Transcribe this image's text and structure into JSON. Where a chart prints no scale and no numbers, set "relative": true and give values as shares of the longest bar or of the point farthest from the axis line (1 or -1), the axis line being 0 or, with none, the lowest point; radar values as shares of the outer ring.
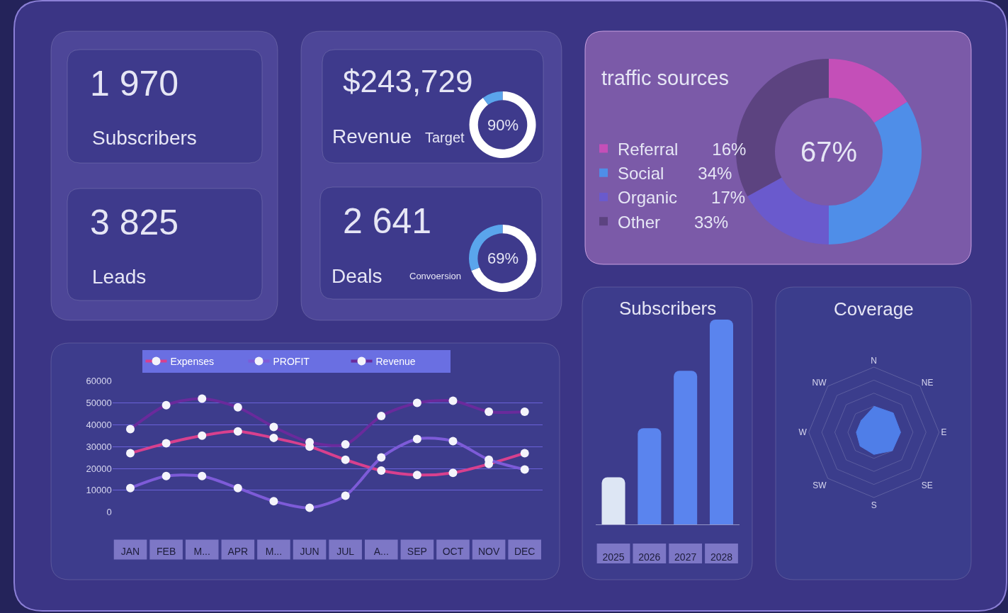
{
  "chart_data": [
    {
      "type": "other",
      "annotations": [
        "1 970",
        "Subscribers"
      ]
    },
    {
      "type": "other",
      "annotations": [
        "3 825",
        "Leads"
      ]
    },
    {
      "type": "other",
      "annotations": [
        "$243,729",
        "Revenue"
      ]
    },
    {
      "type": "donut",
      "title": "Target",
      "categories": [
        null,
        null
      ],
      "values": [
        90,
        10
      ],
      "colors": [
        "#ffffff",
        "#5aa5ec"
      ],
      "annotations": [
        "90%"
      ]
    },
    {
      "type": "other",
      "annotations": [
        "2 641",
        "Deals"
      ]
    },
    {
      "type": "donut",
      "title": "Convoersion",
      "categories": [
        null,
        null
      ],
      "values": [
        69,
        31
      ],
      "colors": [
        "#ffffff",
        "#5aa5ec"
      ],
      "annotations": [
        "69%"
      ]
    },
    {
      "type": "donut",
      "title": "traffic sources",
      "categories": [
        "Referral",
        "Social",
        "Organic",
        "Other"
      ],
      "values": [
        16,
        34,
        17,
        33
      ],
      "value_labels": [
        "16%",
        "34%",
        "17%",
        "33%"
      ],
      "colors": [
        "#c44fb8",
        "#4f8ee8",
        "#6a5acd",
        "#5c4380"
      ],
      "annotations": [
        "67%"
      ],
      "legend": "left"
    },
    {
      "type": "line",
      "categories": [
        "JAN",
        "FEB",
        "M...",
        "APR",
        "M...",
        "JUN",
        "JUL",
        "A...",
        "SEP",
        "OCT",
        "NOV",
        "DEC"
      ],
      "series": [
        {
          "name": "Expenses",
          "color": "#d8408e",
          "values": [
            27000,
            31500,
            35000,
            37000,
            34000,
            30000,
            24000,
            19000,
            17000,
            18000,
            22000,
            27000
          ]
        },
        {
          "name": "PROFIT",
          "color": "#7d5bd8",
          "values": [
            11000,
            16500,
            16500,
            11000,
            5000,
            2000,
            7500,
            25000,
            33500,
            32500,
            24000,
            19500
          ]
        },
        {
          "name": "Revenue",
          "color": "#6a2a9c",
          "values": [
            38000,
            49000,
            52000,
            48000,
            39000,
            32000,
            31000,
            44000,
            50000,
            51000,
            46000,
            46000
          ]
        }
      ],
      "ylim": [
        0,
        60000
      ],
      "yticks": [
        0,
        10000,
        20000,
        30000,
        40000,
        50000,
        60000
      ],
      "grid": "y",
      "legend": "top",
      "marker": "circle"
    },
    {
      "type": "bar",
      "title": "Subscribers",
      "categories": [
        "2025",
        "2026",
        "2027",
        "2028"
      ],
      "values": [
        0.23,
        0.47,
        0.75,
        1
      ],
      "colors": [
        "#dde6f4",
        "#5a84ee",
        "#5a84ee",
        "#5a84ee"
      ],
      "relative": true
    },
    {
      "type": "radar",
      "title": "Coverage",
      "categories": [
        "N",
        "NE",
        "E",
        "SE",
        "S",
        "SW",
        "W",
        "NW"
      ],
      "values": [
        0.4,
        0.42,
        0.41,
        0.4,
        0.34,
        0.3,
        0.27,
        0.27
      ],
      "color": "#4f7ee8",
      "relative": true,
      "grid": true
    }
  ]
}
